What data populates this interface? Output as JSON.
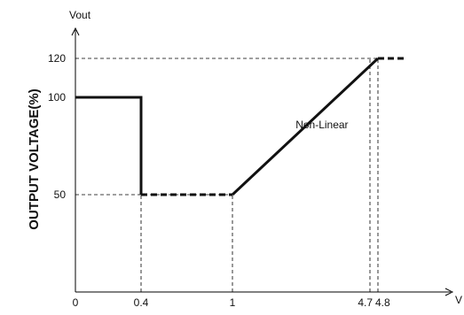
{
  "chart_data": {
    "type": "line",
    "title": "",
    "ylabel": "OUTPUT  VOLTAGE(%)",
    "y_axis_name": "Vout",
    "x_axis_name": "V",
    "x_ticks": [
      {
        "value": 0,
        "label": "0"
      },
      {
        "value": 0.4,
        "label": "0.4"
      },
      {
        "value": 1,
        "label": "1"
      },
      {
        "value": 4.7,
        "label": "4.7"
      },
      {
        "value": 4.8,
        "label": "4.8"
      }
    ],
    "y_ticks": [
      {
        "value": 50,
        "label": "50"
      },
      {
        "value": 100,
        "label": "100"
      },
      {
        "value": 120,
        "label": "120"
      }
    ],
    "segments": [
      {
        "style": "solid",
        "points": [
          [
            0,
            100
          ],
          [
            0.4,
            100
          ],
          [
            0.4,
            50
          ]
        ]
      },
      {
        "style": "dashed",
        "points": [
          [
            0.4,
            50
          ],
          [
            1,
            50
          ]
        ]
      },
      {
        "style": "solid",
        "points": [
          [
            1,
            50
          ],
          [
            4.8,
            120
          ]
        ]
      },
      {
        "style": "dashed",
        "points": [
          [
            4.8,
            120
          ],
          [
            5.3,
            120
          ]
        ]
      }
    ],
    "guides": [
      {
        "points": [
          [
            0,
            120
          ],
          [
            4.8,
            120
          ]
        ]
      },
      {
        "points": [
          [
            0,
            50
          ],
          [
            1,
            50
          ]
        ]
      },
      {
        "points": [
          [
            0.4,
            0
          ],
          [
            0.4,
            50
          ]
        ]
      },
      {
        "points": [
          [
            1,
            0
          ],
          [
            1,
            50
          ]
        ]
      },
      {
        "points": [
          [
            4.7,
            0
          ],
          [
            4.7,
            120
          ]
        ]
      },
      {
        "points": [
          [
            4.8,
            0
          ],
          [
            4.8,
            120
          ]
        ]
      }
    ],
    "annotations": [
      {
        "text": "Non-Linear",
        "x": 2.7,
        "y": 84
      }
    ],
    "grid": false
  }
}
